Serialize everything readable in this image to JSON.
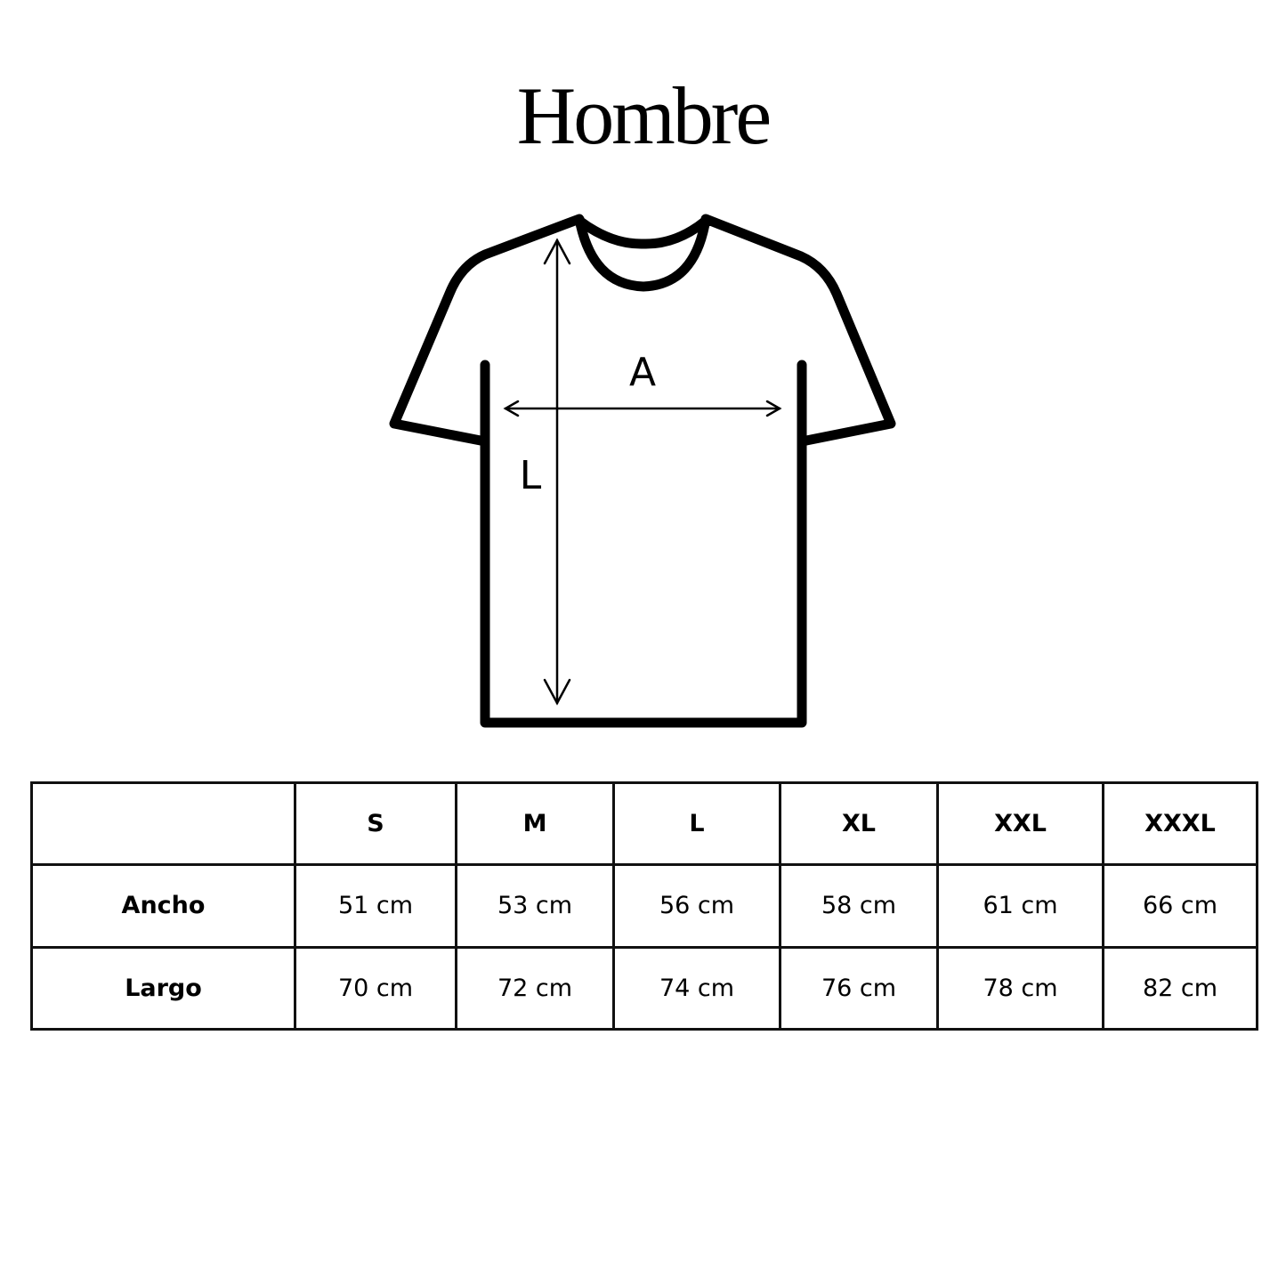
{
  "title": "Hombre",
  "diagram": {
    "width_label": "A",
    "length_label": "L"
  },
  "table": {
    "columns": [
      "",
      "S",
      "M",
      "L",
      "XL",
      "XXL",
      "XXXL"
    ],
    "rows": [
      {
        "label": "Ancho",
        "values": [
          "51 cm",
          "53 cm",
          "56 cm",
          "58 cm",
          "61 cm",
          "66 cm"
        ]
      },
      {
        "label": "Largo",
        "values": [
          "70 cm",
          "72 cm",
          "74 cm",
          "76 cm",
          "78 cm",
          "82 cm"
        ]
      }
    ]
  }
}
